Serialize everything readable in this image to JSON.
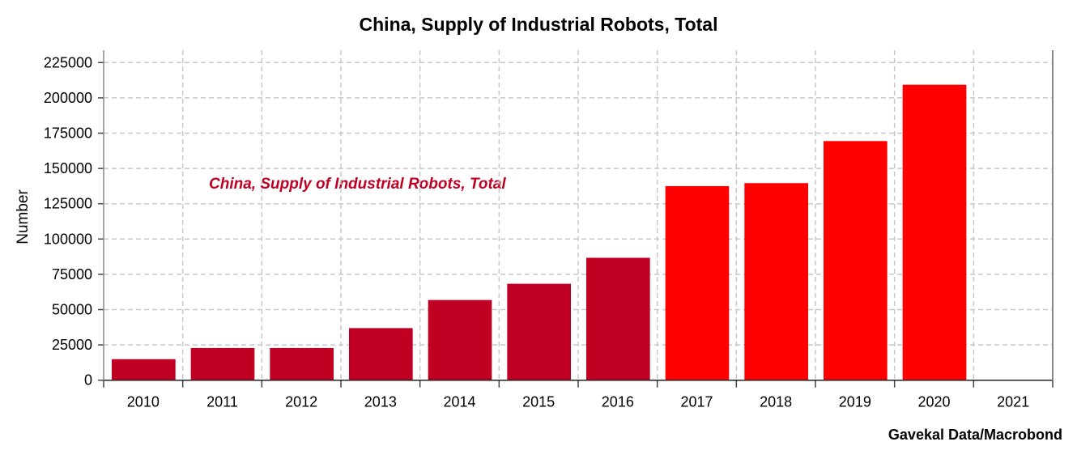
{
  "chart_data": {
    "type": "bar",
    "title": "China, Supply of Industrial Robots, Total",
    "ylabel": "Number",
    "xlabel": "",
    "categories": [
      "2010",
      "2011",
      "2012",
      "2013",
      "2014",
      "2015",
      "2016",
      "2017",
      "2018",
      "2019",
      "2020",
      "2021"
    ],
    "series": [
      {
        "name": "China, Supply of Industrial Robots, Total",
        "values": [
          14900,
          22800,
          22800,
          36900,
          56800,
          68300,
          86700,
          137500,
          139600,
          169400,
          209300,
          null
        ]
      }
    ],
    "bar_colors": [
      "#c00022",
      "#c00022",
      "#c00022",
      "#c00022",
      "#c00022",
      "#c00022",
      "#c00022",
      "#ff0000",
      "#ff0000",
      "#ff0000",
      "#ff0000",
      "#ff0000"
    ],
    "yticks": [
      0,
      25000,
      50000,
      75000,
      100000,
      125000,
      150000,
      175000,
      200000,
      225000
    ],
    "ylim": [
      0,
      235000
    ],
    "grid": true,
    "legend_color": "#c00022",
    "source": "Gavekal Data/Macrobond"
  }
}
